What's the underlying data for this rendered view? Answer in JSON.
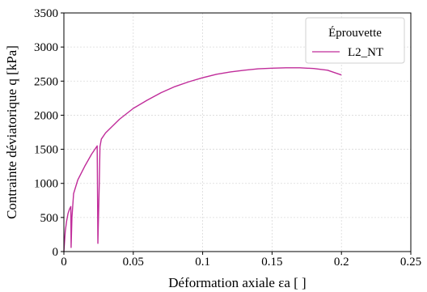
{
  "chart_data": {
    "type": "line",
    "xlabel": "Déformation axiale εa [ ]",
    "ylabel": "Contrainte déviatorique q [kPa]",
    "xlim": [
      0,
      0.25
    ],
    "ylim": [
      0,
      3500
    ],
    "x_ticks": [
      0,
      0.05,
      0.1,
      0.15,
      0.2,
      0.25
    ],
    "x_tick_labels": [
      "0",
      "0.05",
      "0.1",
      "0.15",
      "0.2",
      "0.25"
    ],
    "y_ticks": [
      0,
      500,
      1000,
      1500,
      2000,
      2500,
      3000,
      3500
    ],
    "y_tick_labels": [
      "0",
      "500",
      "1000",
      "1500",
      "2000",
      "2500",
      "3000",
      "3500"
    ],
    "grid": true,
    "legend": {
      "title": "Éprouvette",
      "placement": "top-right"
    },
    "series": [
      {
        "name": "L2_NT",
        "color": "#c02c9a",
        "points": [
          [
            0.0,
            0
          ],
          [
            0.001,
            300
          ],
          [
            0.002,
            450
          ],
          [
            0.003,
            560
          ],
          [
            0.004,
            620
          ],
          [
            0.005,
            660
          ],
          [
            0.0052,
            60
          ],
          [
            0.0058,
            500
          ],
          [
            0.007,
            850
          ],
          [
            0.01,
            1050
          ],
          [
            0.015,
            1250
          ],
          [
            0.02,
            1430
          ],
          [
            0.024,
            1550
          ],
          [
            0.0245,
            120
          ],
          [
            0.0255,
            1000
          ],
          [
            0.026,
            1540
          ],
          [
            0.027,
            1650
          ],
          [
            0.03,
            1740
          ],
          [
            0.04,
            1940
          ],
          [
            0.05,
            2100
          ],
          [
            0.06,
            2220
          ],
          [
            0.07,
            2330
          ],
          [
            0.08,
            2420
          ],
          [
            0.09,
            2490
          ],
          [
            0.1,
            2550
          ],
          [
            0.11,
            2600
          ],
          [
            0.12,
            2635
          ],
          [
            0.13,
            2660
          ],
          [
            0.14,
            2680
          ],
          [
            0.15,
            2690
          ],
          [
            0.16,
            2695
          ],
          [
            0.17,
            2695
          ],
          [
            0.18,
            2685
          ],
          [
            0.19,
            2660
          ],
          [
            0.2,
            2590
          ]
        ]
      }
    ]
  }
}
